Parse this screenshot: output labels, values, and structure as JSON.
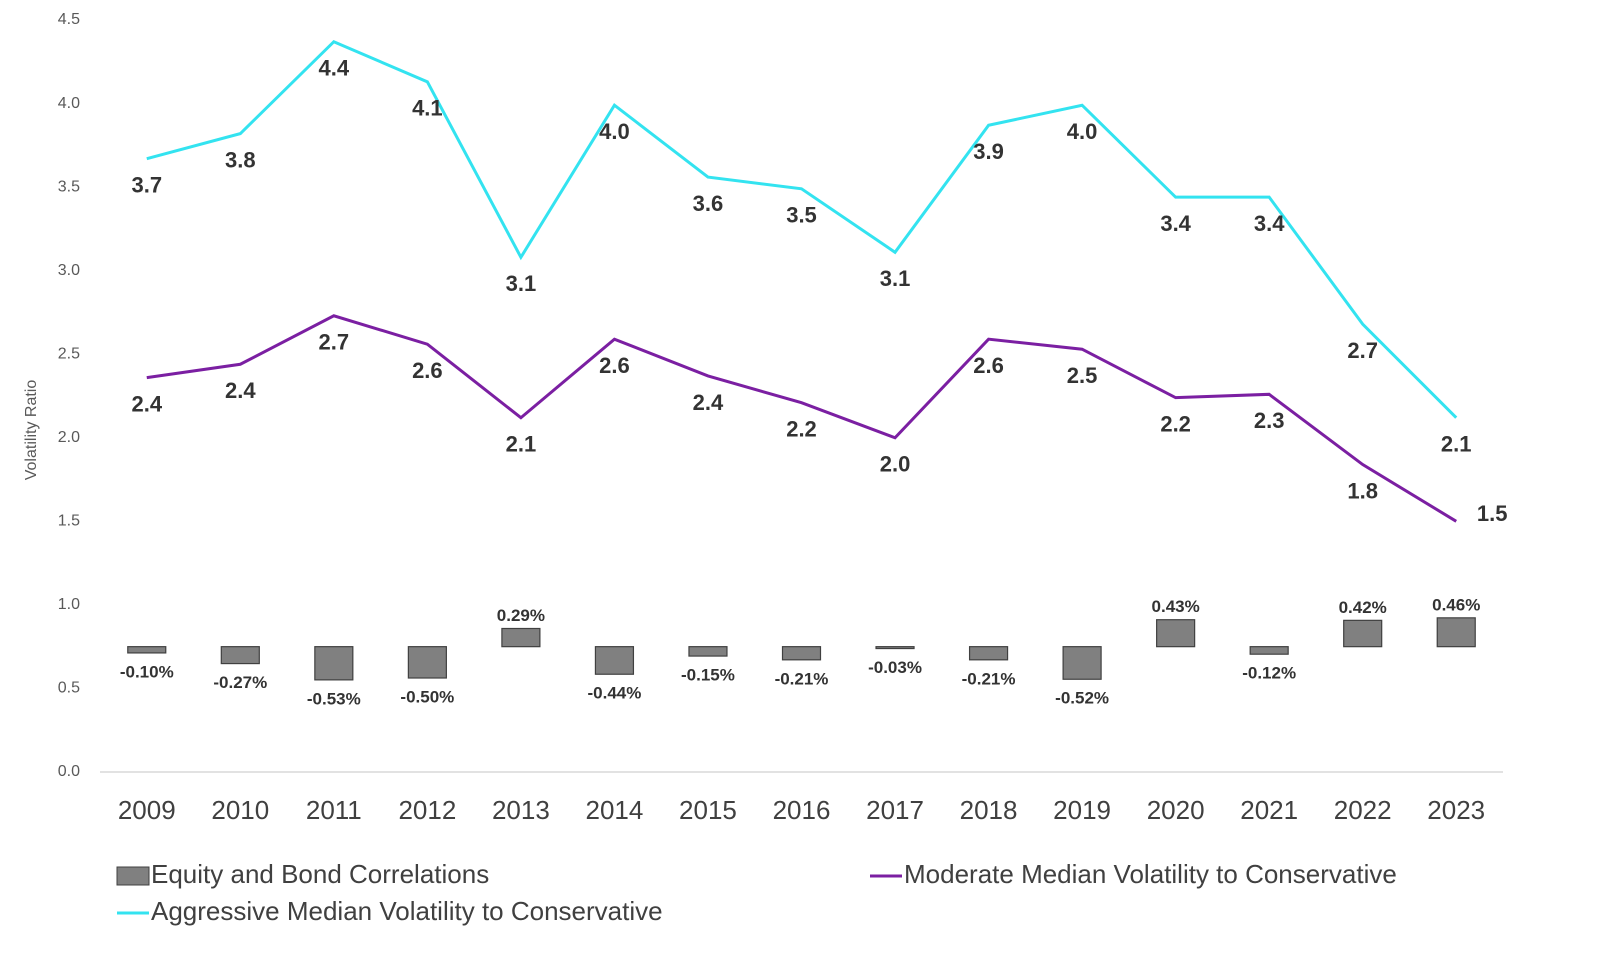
{
  "chart_data": {
    "type": "combo",
    "y_label": "Volatility Ratio",
    "categories": [
      "2009",
      "2010",
      "2011",
      "2012",
      "2013",
      "2014",
      "2015",
      "2016",
      "2017",
      "2018",
      "2019",
      "2020",
      "2021",
      "2022",
      "2023"
    ],
    "ylim": [
      0,
      4.5
    ],
    "yticks": [
      {
        "value": 0,
        "label": "0.0"
      },
      {
        "value": 0.5,
        "label": "0.5"
      },
      {
        "value": 1,
        "label": "1.0"
      },
      {
        "value": 1.5,
        "label": "1.5"
      },
      {
        "value": 2,
        "label": "2.0"
      },
      {
        "value": 2.5,
        "label": "2.5"
      },
      {
        "value": 3,
        "label": "3.0"
      },
      {
        "value": 3.5,
        "label": "3.5"
      },
      {
        "value": 4,
        "label": "4.0"
      },
      {
        "value": 4.5,
        "label": "4.5"
      }
    ],
    "y2lim": [
      -2,
      10
    ],
    "series": [
      {
        "name": "Equity and Bond Correlations",
        "type": "bar",
        "axis": "y2",
        "color": "#808080",
        "values": [
          -0.1,
          -0.27,
          -0.53,
          -0.5,
          0.29,
          -0.44,
          -0.15,
          -0.21,
          -0.03,
          -0.21,
          -0.52,
          0.43,
          -0.12,
          0.42,
          0.46
        ],
        "value_labels": [
          "-0.10%",
          "-0.27%",
          "-0.53%",
          "-0.50%",
          "0.29%",
          "-0.44%",
          "-0.15%",
          "-0.21%",
          "-0.03%",
          "-0.21%",
          "-0.52%",
          "0.43%",
          "-0.12%",
          "0.42%",
          "0.46%"
        ]
      },
      {
        "name": "Moderate Median Volatility to Conservative",
        "type": "line",
        "color": "#7b1fa2",
        "values": [
          2.36,
          2.44,
          2.73,
          2.56,
          2.12,
          2.59,
          2.37,
          2.21,
          2.0,
          2.59,
          2.53,
          2.24,
          2.26,
          1.84,
          1.5
        ],
        "value_labels": [
          "2.4",
          "2.4",
          "2.7",
          "2.6",
          "2.1",
          "2.6",
          "2.4",
          "2.2",
          "2.0",
          "2.6",
          "2.5",
          "2.2",
          "2.3",
          "1.8",
          "1.5"
        ]
      },
      {
        "name": "Aggressive Median Volatility to Conservative",
        "type": "line",
        "color": "#33e3f0",
        "values": [
          3.67,
          3.82,
          4.37,
          4.13,
          3.08,
          3.99,
          3.56,
          3.49,
          3.11,
          3.87,
          3.99,
          3.44,
          3.44,
          2.68,
          2.12
        ],
        "value_labels": [
          "3.7",
          "3.8",
          "4.4",
          "4.1",
          "3.1",
          "4.0",
          "3.6",
          "3.5",
          "3.1",
          "3.9",
          "4.0",
          "3.4",
          "3.4",
          "2.7",
          "2.1"
        ]
      }
    ]
  }
}
